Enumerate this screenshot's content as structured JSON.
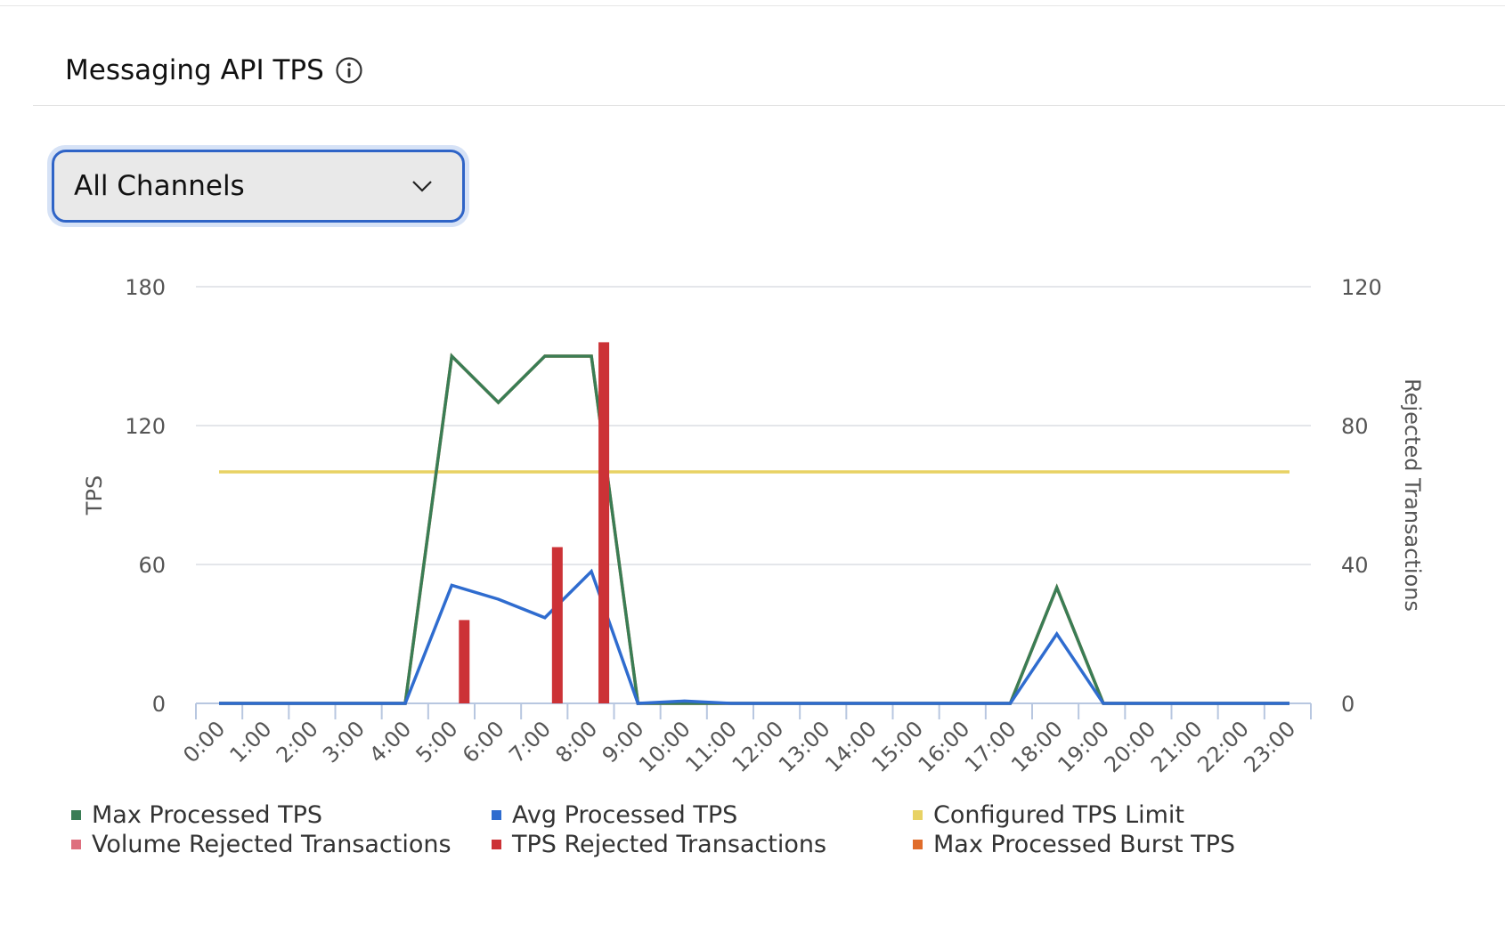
{
  "header": {
    "title": "Messaging API TPS",
    "info_icon": "info-circle-icon"
  },
  "channel_select": {
    "value": "All Channels",
    "icon": "chevron-down-icon"
  },
  "colors": {
    "max_processed": "#3a7d55",
    "avg_processed": "#2f6ccf",
    "configured_limit": "#e8d264",
    "volume_rejected": "#de6f7e",
    "tps_rejected": "#cc3236",
    "max_burst": "#e06c2a",
    "grid": "#e4e6ea",
    "axis": "#b8c7e0"
  },
  "chart_data": {
    "type": "line",
    "categories": [
      "0:00",
      "1:00",
      "2:00",
      "3:00",
      "4:00",
      "5:00",
      "6:00",
      "7:00",
      "8:00",
      "9:00",
      "10:00",
      "11:00",
      "12:00",
      "13:00",
      "14:00",
      "15:00",
      "16:00",
      "17:00",
      "18:00",
      "19:00",
      "20:00",
      "21:00",
      "22:00",
      "23:00"
    ],
    "ylabel": "TPS",
    "y2label": "Rejected Transactions",
    "ylim": [
      0,
      180
    ],
    "y2lim": [
      0,
      120
    ],
    "yticks": [
      0,
      60,
      120,
      180
    ],
    "y2ticks": [
      0,
      40,
      80,
      120
    ],
    "grid": true,
    "legend_position": "bottom",
    "series": [
      {
        "name": "Max Processed TPS",
        "kind": "line",
        "axis": "left",
        "color_key": "max_processed",
        "values": [
          0,
          0,
          0,
          0,
          0,
          150,
          130,
          150,
          150,
          0,
          0,
          0,
          0,
          0,
          0,
          0,
          0,
          0,
          50,
          0,
          0,
          0,
          0,
          0
        ]
      },
      {
        "name": "Avg Processed TPS",
        "kind": "line",
        "axis": "left",
        "color_key": "avg_processed",
        "values": [
          0,
          0,
          0,
          0,
          0,
          51,
          45,
          37,
          57,
          0,
          1,
          0,
          0,
          0,
          0,
          0,
          0,
          0,
          30,
          0,
          0,
          0,
          0,
          0
        ]
      },
      {
        "name": "Configured TPS Limit",
        "kind": "line",
        "axis": "left",
        "color_key": "configured_limit",
        "values": [
          100,
          100,
          100,
          100,
          100,
          100,
          100,
          100,
          100,
          100,
          100,
          100,
          100,
          100,
          100,
          100,
          100,
          100,
          100,
          100,
          100,
          100,
          100,
          100
        ]
      },
      {
        "name": "Volume Rejected Transactions",
        "kind": "bar",
        "axis": "right",
        "color_key": "volume_rejected",
        "values": [
          0,
          0,
          0,
          0,
          0,
          0,
          0,
          0,
          0,
          0,
          0,
          0,
          0,
          0,
          0,
          0,
          0,
          0,
          0,
          0,
          0,
          0,
          0,
          0
        ]
      },
      {
        "name": "TPS Rejected Transactions",
        "kind": "bar",
        "axis": "right",
        "color_key": "tps_rejected",
        "values": [
          0,
          0,
          0,
          0,
          0,
          24,
          0,
          45,
          104,
          0,
          0,
          0,
          0,
          0,
          0,
          0,
          0,
          0,
          0,
          0,
          0,
          0,
          0,
          0
        ]
      },
      {
        "name": "Max Processed Burst TPS",
        "kind": "line",
        "axis": "left",
        "color_key": "max_burst",
        "values": [
          0,
          0,
          0,
          0,
          0,
          150,
          130,
          150,
          150,
          0,
          0,
          0,
          0,
          0,
          0,
          0,
          0,
          0,
          50,
          0,
          0,
          0,
          0,
          0
        ]
      }
    ]
  },
  "legend": [
    {
      "label": "Max Processed TPS",
      "color_key": "max_processed"
    },
    {
      "label": "Avg Processed TPS",
      "color_key": "avg_processed"
    },
    {
      "label": "Configured TPS Limit",
      "color_key": "configured_limit"
    },
    {
      "label": "Volume Rejected Transactions",
      "color_key": "volume_rejected"
    },
    {
      "label": "TPS Rejected Transactions",
      "color_key": "tps_rejected"
    },
    {
      "label": "Max Processed Burst TPS",
      "color_key": "max_burst"
    }
  ]
}
